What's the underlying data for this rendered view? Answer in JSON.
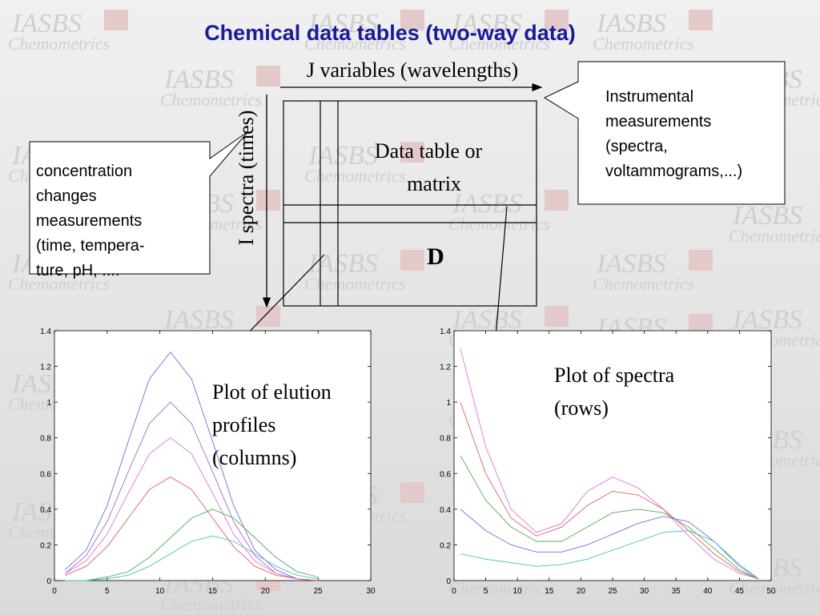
{
  "title": "Chemical data tables (two-way data)",
  "watermark": {
    "logo": "IASBS",
    "sub": "Chemometrics"
  },
  "diagram": {
    "j_label": "J variables (wavelengths)",
    "i_label": "I spectra (times)",
    "matrix_lines": [
      "Data table or",
      "matrix"
    ],
    "matrix_symbol": "D",
    "left_callout": [
      "concentration",
      "changes",
      "measurements",
      "(time, tempera-",
      "ture, pH, ...."
    ],
    "right_callout": [
      "Instrumental",
      "measurements",
      "(spectra,",
      "voltammograms,...)"
    ],
    "elution_label": [
      "Plot of elution",
      "profiles",
      "(columns)"
    ],
    "spectra_label": [
      "Plot of spectra",
      "(rows)"
    ]
  },
  "plots": [
    {
      "xlim": [
        0,
        30
      ],
      "ylim": [
        0,
        1.4
      ],
      "xticks": [
        0,
        5,
        10,
        15,
        20,
        25,
        30
      ],
      "yticks": [
        0,
        0.2,
        0.4,
        0.6,
        0.8,
        1,
        1.2,
        1.4
      ],
      "x": [
        1,
        3,
        5,
        7,
        9,
        11,
        13,
        15,
        17,
        19,
        21,
        23,
        25
      ],
      "series": [
        {
          "color": "#6f6fe0",
          "values": [
            0.06,
            0.17,
            0.42,
            0.78,
            1.13,
            1.28,
            1.13,
            0.78,
            0.42,
            0.17,
            0.06,
            0.01,
            0
          ]
        },
        {
          "color": "#a070c0",
          "values": [
            0.04,
            0.14,
            0.33,
            0.61,
            0.88,
            1.0,
            0.88,
            0.61,
            0.33,
            0.14,
            0.04,
            0.01,
            0
          ]
        },
        {
          "color": "#e070e0",
          "values": [
            0.04,
            0.11,
            0.26,
            0.49,
            0.71,
            0.8,
            0.71,
            0.49,
            0.26,
            0.11,
            0.04,
            0.01,
            0
          ]
        },
        {
          "color": "#e06060",
          "values": [
            0.03,
            0.08,
            0.19,
            0.35,
            0.51,
            0.58,
            0.51,
            0.35,
            0.19,
            0.08,
            0.03,
            0.01,
            0
          ]
        },
        {
          "color": "#50b050",
          "values": [
            0,
            0,
            0.02,
            0.05,
            0.13,
            0.24,
            0.35,
            0.4,
            0.35,
            0.24,
            0.13,
            0.05,
            0.02
          ]
        },
        {
          "color": "#40c0c0",
          "values": [
            0,
            0,
            0.01,
            0.03,
            0.08,
            0.15,
            0.22,
            0.25,
            0.22,
            0.15,
            0.08,
            0.03,
            0.01
          ]
        }
      ]
    },
    {
      "xlim": [
        0,
        50
      ],
      "ylim": [
        0,
        1.4
      ],
      "xticks": [
        0,
        5,
        10,
        15,
        20,
        25,
        30,
        35,
        40,
        45,
        50
      ],
      "yticks": [
        0,
        0.2,
        0.4,
        0.6,
        0.8,
        1,
        1.2,
        1.4
      ],
      "x": [
        1,
        5,
        9,
        13,
        17,
        21,
        25,
        29,
        33,
        37,
        41,
        45,
        48
      ],
      "series": [
        {
          "color": "#e070e0",
          "values": [
            1.3,
            0.75,
            0.4,
            0.27,
            0.32,
            0.5,
            0.58,
            0.52,
            0.4,
            0.25,
            0.12,
            0.04,
            0.01
          ]
        },
        {
          "color": "#e06060",
          "values": [
            1.0,
            0.6,
            0.35,
            0.25,
            0.3,
            0.42,
            0.5,
            0.48,
            0.4,
            0.28,
            0.15,
            0.05,
            0.01
          ]
        },
        {
          "color": "#50b050",
          "values": [
            0.7,
            0.45,
            0.3,
            0.22,
            0.22,
            0.3,
            0.38,
            0.4,
            0.38,
            0.3,
            0.18,
            0.06,
            0.01
          ]
        },
        {
          "color": "#6f6fe0",
          "values": [
            0.4,
            0.28,
            0.2,
            0.16,
            0.16,
            0.2,
            0.26,
            0.32,
            0.36,
            0.33,
            0.22,
            0.08,
            0.01
          ]
        },
        {
          "color": "#40c0c0",
          "values": [
            0.15,
            0.12,
            0.1,
            0.08,
            0.09,
            0.12,
            0.17,
            0.22,
            0.27,
            0.28,
            0.22,
            0.09,
            0.01
          ]
        }
      ]
    }
  ]
}
